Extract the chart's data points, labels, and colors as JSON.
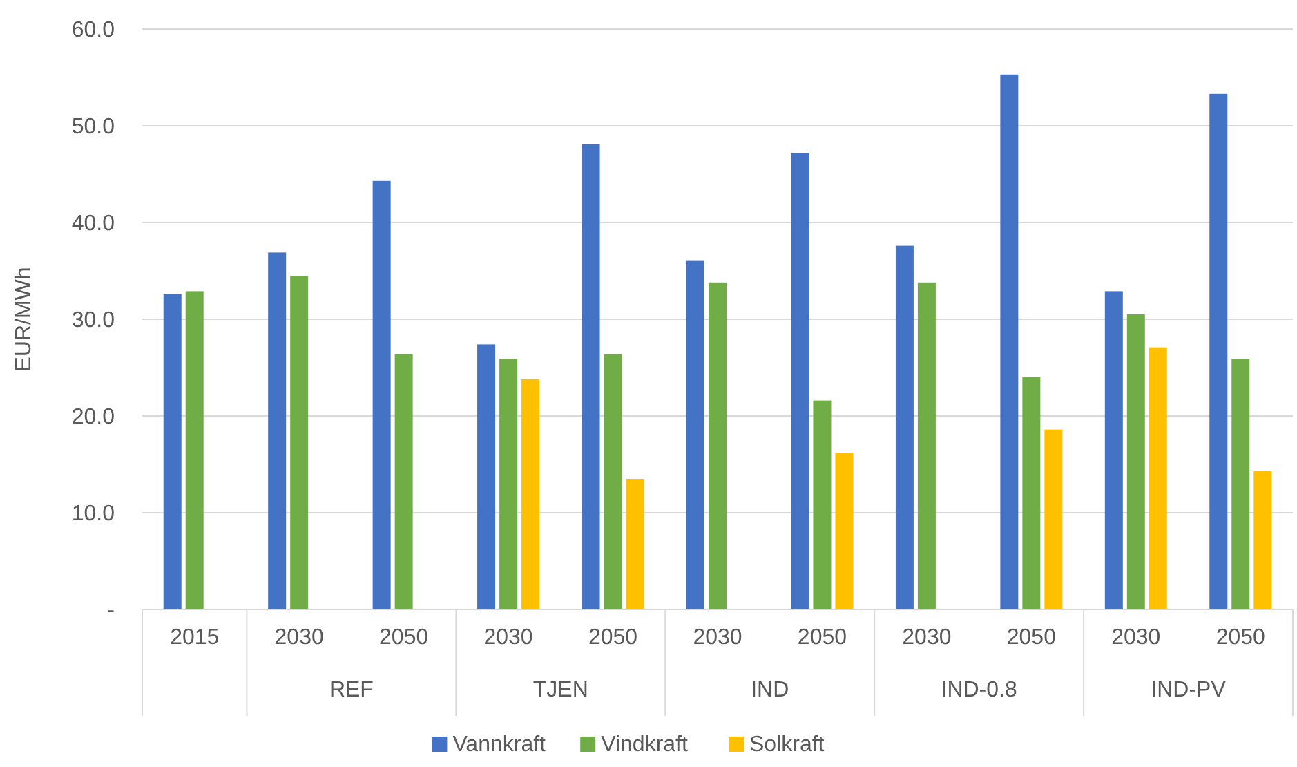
{
  "chart_data": {
    "type": "bar",
    "ylabel": "EUR/MWh",
    "categories": [
      "2015",
      "2030",
      "2050",
      "2030",
      "2050",
      "2030",
      "2050",
      "2030",
      "2050",
      "2030",
      "2050"
    ],
    "annotations": [
      "REF",
      "TJEN",
      "IND",
      "IND-0.8",
      "IND-PV"
    ],
    "series": [
      {
        "name": "Vannkraft",
        "color": "#4472c4",
        "values": [
          32.6,
          36.9,
          44.3,
          27.4,
          48.1,
          36.1,
          47.2,
          37.6,
          55.3,
          32.9,
          53.3
        ]
      },
      {
        "name": "Vindkraft",
        "color": "#70ad47",
        "values": [
          32.9,
          34.5,
          26.4,
          25.9,
          26.4,
          33.8,
          21.6,
          33.8,
          24.0,
          30.5,
          25.9
        ]
      },
      {
        "name": "Solkraft",
        "color": "#ffc000",
        "values": [
          null,
          null,
          null,
          23.8,
          13.5,
          null,
          16.2,
          null,
          18.6,
          27.1,
          14.3
        ]
      }
    ],
    "ylim": [
      0,
      60
    ],
    "yticks": [
      {
        "value": 0,
        "label": "-"
      },
      {
        "value": 10,
        "label": "10.0"
      },
      {
        "value": 20,
        "label": "20.0"
      },
      {
        "value": 30,
        "label": "30.0"
      },
      {
        "value": 40,
        "label": "40.0"
      },
      {
        "value": 50,
        "label": "50.0"
      },
      {
        "value": 60,
        "label": "60.0"
      }
    ],
    "grid": "y",
    "legend": "bottom"
  }
}
